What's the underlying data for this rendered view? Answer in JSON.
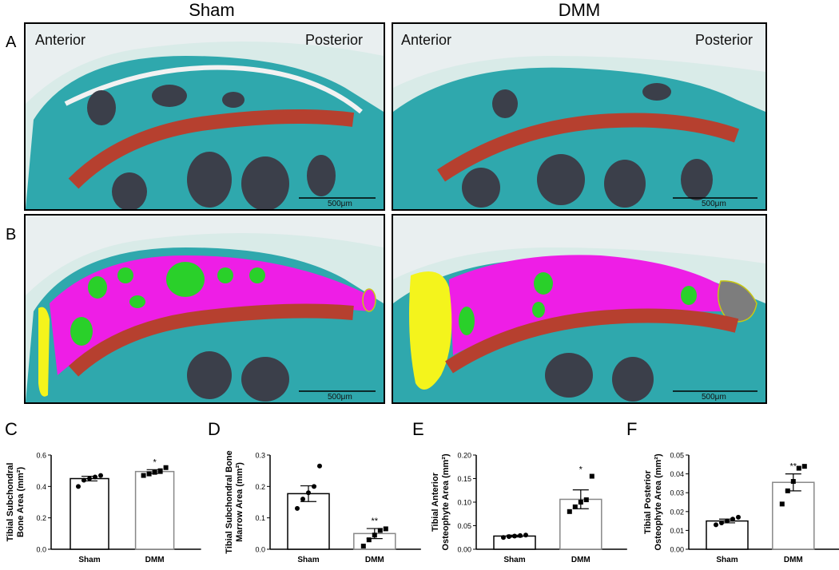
{
  "header": {
    "col_left": "Sham",
    "col_right": "DMM"
  },
  "rows": {
    "a": "A",
    "b": "B"
  },
  "panel_labels": {
    "anterior": "Anterior",
    "posterior": "Posterior",
    "scale_bar": "500μm"
  },
  "colors": {
    "cartilage_teal": "#2fa8ad",
    "bone_red": "#b6402f",
    "marrow_dark": "#3b3f4a",
    "subchondral_magenta": "#ee1ee6",
    "marrow_green": "#2ad02a",
    "osteophyte_yellow": "#f4f41c",
    "osteophyte_gray": "#7d7d7d",
    "sham_bar": "#000000",
    "dmm_bar": "#888888"
  },
  "chart_data": [
    {
      "letter": "C",
      "type": "bar",
      "ylabel_lines": [
        "Tibial Subchondral",
        "Bone Area (mm²)"
      ],
      "categories": [
        "Sham",
        "DMM"
      ],
      "values": [
        0.45,
        0.495
      ],
      "sem": [
        0.015,
        0.012
      ],
      "points": [
        [
          0.4,
          0.44,
          0.45,
          0.46,
          0.47
        ],
        [
          0.47,
          0.48,
          0.49,
          0.5,
          0.52
        ]
      ],
      "ylim": [
        0,
        0.6
      ],
      "yticks": [
        "0.0",
        "0.2",
        "0.4",
        "0.6"
      ],
      "ytick_values": [
        0,
        0.2,
        0.4,
        0.6
      ],
      "significance": [
        "",
        "*"
      ]
    },
    {
      "letter": "D",
      "type": "bar",
      "ylabel_lines": [
        "Tibial Subchondral Bone",
        "Marrow Area (mm²)"
      ],
      "categories": [
        "Sham",
        "DMM"
      ],
      "values": [
        0.177,
        0.05
      ],
      "sem": [
        0.025,
        0.016
      ],
      "points": [
        [
          0.13,
          0.16,
          0.18,
          0.2,
          0.265
        ],
        [
          0.01,
          0.03,
          0.045,
          0.06,
          0.065
        ]
      ],
      "ylim": [
        0,
        0.3
      ],
      "yticks": [
        "0.0",
        "0.1",
        "0.2",
        "0.3"
      ],
      "ytick_values": [
        0,
        0.1,
        0.2,
        0.3
      ],
      "significance": [
        "",
        "**"
      ]
    },
    {
      "letter": "E",
      "type": "bar",
      "ylabel_lines": [
        "Tibial Anterior",
        "Osteophyte  Area (mm²)"
      ],
      "categories": [
        "Sham",
        "DMM"
      ],
      "values": [
        0.028,
        0.106
      ],
      "sem": [
        0.002,
        0.02
      ],
      "points": [
        [
          0.025,
          0.027,
          0.028,
          0.029,
          0.03
        ],
        [
          0.08,
          0.09,
          0.1,
          0.105,
          0.155
        ]
      ],
      "ylim": [
        0,
        0.2
      ],
      "yticks": [
        "0.00",
        "0.05",
        "0.10",
        "0.15",
        "0.20"
      ],
      "ytick_values": [
        0,
        0.05,
        0.1,
        0.15,
        0.2
      ],
      "significance": [
        "",
        "*"
      ]
    },
    {
      "letter": "F",
      "type": "bar",
      "ylabel_lines": [
        "Tibial Posterior",
        "Osteophyte  Area (mm²)"
      ],
      "categories": [
        "Sham",
        "DMM"
      ],
      "values": [
        0.015,
        0.0355
      ],
      "sem": [
        0.001,
        0.0045
      ],
      "points": [
        [
          0.013,
          0.014,
          0.015,
          0.016,
          0.017
        ],
        [
          0.024,
          0.031,
          0.036,
          0.043,
          0.044
        ]
      ],
      "ylim": [
        0,
        0.05
      ],
      "yticks": [
        "0.00",
        "0.01",
        "0.02",
        "0.03",
        "0.04",
        "0.05"
      ],
      "ytick_values": [
        0,
        0.01,
        0.02,
        0.03,
        0.04,
        0.05
      ],
      "significance": [
        "",
        "**"
      ]
    }
  ]
}
